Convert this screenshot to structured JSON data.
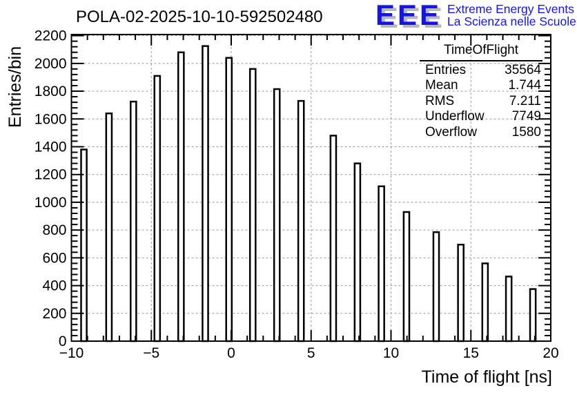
{
  "title": "POLA-02-2025-10-10-592502480",
  "logo": {
    "acronym": "EEE",
    "line1": "Extreme Energy Events",
    "line2": "La Scienza nelle Scuole",
    "blue": "#1414f0",
    "shadow": "#b8b8b8"
  },
  "stats": {
    "title": "TimeOfFlight",
    "rows": [
      {
        "label": "Entries",
        "value": "35564"
      },
      {
        "label": "Mean",
        "value": "1.744"
      },
      {
        "label": "RMS",
        "value": "7.211"
      },
      {
        "label": "Underflow",
        "value": "7749"
      },
      {
        "label": "Overflow",
        "value": "1580"
      }
    ]
  },
  "chart_data": {
    "type": "bar",
    "title": "POLA-02-2025-10-10-592502480",
    "xlabel": "Time of flight [ns]",
    "ylabel": "Entries/bin",
    "xlim": [
      -10,
      20
    ],
    "ylim": [
      0,
      2208
    ],
    "grid": true,
    "grid_color": "#999999",
    "frame_color": "#000000",
    "bar_fill": "#ffffff",
    "bar_stroke": "#000000",
    "x_major_ticks": [
      -10,
      -5,
      0,
      5,
      10,
      15,
      20
    ],
    "x_tick_labels": [
      "−10",
      "−5",
      "0",
      "5",
      "10",
      "15",
      "20"
    ],
    "x_minor_step": 1,
    "y_major_ticks": [
      0,
      200,
      400,
      600,
      800,
      1000,
      1200,
      1400,
      1600,
      1800,
      2000,
      2200
    ],
    "y_tick_labels": [
      "0",
      "200",
      "400",
      "600",
      "800",
      "1000",
      "1200",
      "1400",
      "1600",
      "1800",
      "2000",
      "2200"
    ],
    "y_minor_step": 40,
    "bar_width": 0.35,
    "bars": [
      {
        "x": -9.22,
        "y": 1380
      },
      {
        "x": -7.65,
        "y": 1640
      },
      {
        "x": -6.12,
        "y": 1725
      },
      {
        "x": -4.63,
        "y": 1910
      },
      {
        "x": -3.14,
        "y": 2080
      },
      {
        "x": -1.62,
        "y": 2125
      },
      {
        "x": -0.14,
        "y": 2040
      },
      {
        "x": 1.35,
        "y": 1960
      },
      {
        "x": 2.86,
        "y": 1815
      },
      {
        "x": 4.37,
        "y": 1730
      },
      {
        "x": 6.39,
        "y": 1480
      },
      {
        "x": 7.9,
        "y": 1280
      },
      {
        "x": 9.4,
        "y": 1115
      },
      {
        "x": 10.97,
        "y": 930
      },
      {
        "x": 12.83,
        "y": 785
      },
      {
        "x": 14.37,
        "y": 695
      },
      {
        "x": 15.89,
        "y": 560
      },
      {
        "x": 17.37,
        "y": 465
      },
      {
        "x": 18.88,
        "y": 375
      }
    ]
  }
}
